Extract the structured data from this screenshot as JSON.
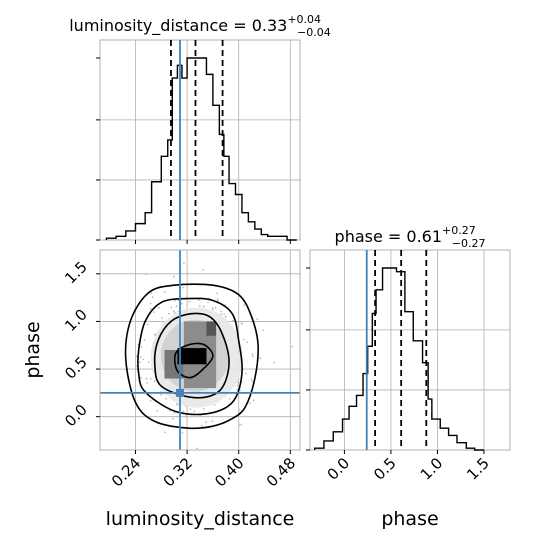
{
  "chart_data": [
    {
      "panel": "hist-luminosity-distance",
      "type": "histogram",
      "title": {
        "param": "luminosity_distance",
        "median": "0.33",
        "plus": "+0.04",
        "minus": "−0.04"
      },
      "xlim": [
        0.185,
        0.495
      ],
      "bin_edges": [
        0.195,
        0.21,
        0.225,
        0.24,
        0.255,
        0.265,
        0.28,
        0.29,
        0.297,
        0.305,
        0.312,
        0.32,
        0.335,
        0.35,
        0.36,
        0.37,
        0.377,
        0.385,
        0.395,
        0.405,
        0.415,
        0.425,
        0.435,
        0.445,
        0.46,
        0.475,
        0.49
      ],
      "counts": [
        0.01,
        0.02,
        0.05,
        0.09,
        0.15,
        0.32,
        0.46,
        0.55,
        0.89,
        0.96,
        0.89,
        1.0,
        1.0,
        0.91,
        0.74,
        0.58,
        0.46,
        0.31,
        0.25,
        0.15,
        0.1,
        0.06,
        0.03,
        0.02,
        0.02,
        0.0
      ],
      "quantile_lines": [
        0.295,
        0.333,
        0.375
      ],
      "truth": 0.309,
      "grid": true
    },
    {
      "panel": "hist-phase",
      "type": "histogram",
      "title": {
        "param": "phase",
        "median": "0.61",
        "plus": "+0.27",
        "minus": "−0.27"
      },
      "xlim": [
        -0.37,
        1.78
      ],
      "bin_edges": [
        -0.32,
        -0.22,
        -0.12,
        -0.02,
        0.05,
        0.13,
        0.2,
        0.25,
        0.3,
        0.34,
        0.41,
        0.47,
        0.56,
        0.65,
        0.74,
        0.84,
        0.9,
        0.94,
        1.03,
        1.12,
        1.21,
        1.31,
        1.4,
        1.5
      ],
      "counts": [
        0.01,
        0.05,
        0.1,
        0.17,
        0.24,
        0.3,
        0.42,
        0.57,
        0.75,
        0.88,
        1.0,
        1.0,
        0.98,
        0.76,
        0.6,
        0.48,
        0.28,
        0.17,
        0.12,
        0.08,
        0.04,
        0.01,
        0.0
      ],
      "quantile_lines": [
        0.33,
        0.61,
        0.88
      ],
      "truth": 0.24,
      "grid": true
    },
    {
      "panel": "joint-luminosity-distance-phase",
      "type": "2d-density",
      "xlim": [
        0.185,
        0.495
      ],
      "ylim": [
        -0.35,
        1.75
      ],
      "truth": {
        "x": 0.309,
        "y": 0.25
      },
      "density_cells": [
        {
          "x": [
            0.285,
            0.315
          ],
          "y": [
            0.4,
            0.7
          ],
          "shade": "#777777"
        },
        {
          "x": [
            0.315,
            0.365
          ],
          "y": [
            0.3,
            1.0
          ],
          "shade": "#8c8c8c"
        },
        {
          "x": [
            0.305,
            0.35
          ],
          "y": [
            0.55,
            0.72
          ],
          "shade": "#000000"
        },
        {
          "x": [
            0.35,
            0.365
          ],
          "y": [
            0.85,
            1.0
          ],
          "shade": "#555555"
        }
      ],
      "contours": [
        [
          [
            0.305,
            0.48
          ],
          [
            0.325,
            0.41
          ],
          [
            0.345,
            0.5
          ],
          [
            0.36,
            0.64
          ],
          [
            0.345,
            0.76
          ],
          [
            0.32,
            0.75
          ],
          [
            0.302,
            0.66
          ]
        ],
        [
          [
            0.28,
            0.32
          ],
          [
            0.33,
            0.2
          ],
          [
            0.37,
            0.27
          ],
          [
            0.385,
            0.55
          ],
          [
            0.375,
            0.86
          ],
          [
            0.355,
            1.05
          ],
          [
            0.325,
            1.08
          ],
          [
            0.295,
            1.0
          ],
          [
            0.275,
            0.8
          ],
          [
            0.27,
            0.55
          ]
        ],
        [
          [
            0.255,
            0.26
          ],
          [
            0.3,
            0.06
          ],
          [
            0.35,
            0.03
          ],
          [
            0.39,
            0.15
          ],
          [
            0.405,
            0.45
          ],
          [
            0.4,
            0.8
          ],
          [
            0.39,
            1.08
          ],
          [
            0.36,
            1.22
          ],
          [
            0.32,
            1.24
          ],
          [
            0.28,
            1.2
          ],
          [
            0.255,
            1.0
          ],
          [
            0.245,
            0.7
          ],
          [
            0.245,
            0.45
          ]
        ],
        [
          [
            0.24,
            0.15
          ],
          [
            0.27,
            -0.05
          ],
          [
            0.32,
            -0.12
          ],
          [
            0.36,
            -0.1
          ],
          [
            0.39,
            -0.02
          ],
          [
            0.41,
            0.1
          ],
          [
            0.425,
            0.4
          ],
          [
            0.43,
            0.75
          ],
          [
            0.42,
            1.05
          ],
          [
            0.4,
            1.28
          ],
          [
            0.36,
            1.38
          ],
          [
            0.3,
            1.38
          ],
          [
            0.26,
            1.3
          ],
          [
            0.232,
            1.0
          ],
          [
            0.225,
            0.6
          ]
        ]
      ],
      "grid": true
    }
  ],
  "axes": {
    "x_ticks_ld": [
      "0.24",
      "0.32",
      "0.40",
      "0.48"
    ],
    "x_ticks_ld_values": [
      0.24,
      0.32,
      0.4,
      0.48
    ],
    "y_ticks_phase": [
      "0.0",
      "0.5",
      "1.0",
      "1.5"
    ],
    "y_ticks_phase_values": [
      0.0,
      0.5,
      1.0,
      1.5
    ],
    "x_ticks_phase": [
      "0.0",
      "0.5",
      "1.0",
      "1.5"
    ],
    "x_ticks_phase_values": [
      0.0,
      0.5,
      1.0,
      1.5
    ],
    "xlabel_ld": "luminosity_distance",
    "xlabel_phase": "phase",
    "ylabel_phase": "phase"
  },
  "colors": {
    "truth": "#4682b4",
    "hist": "#000000",
    "grid": "#b0b0b0",
    "points": "#bbbbbb"
  }
}
